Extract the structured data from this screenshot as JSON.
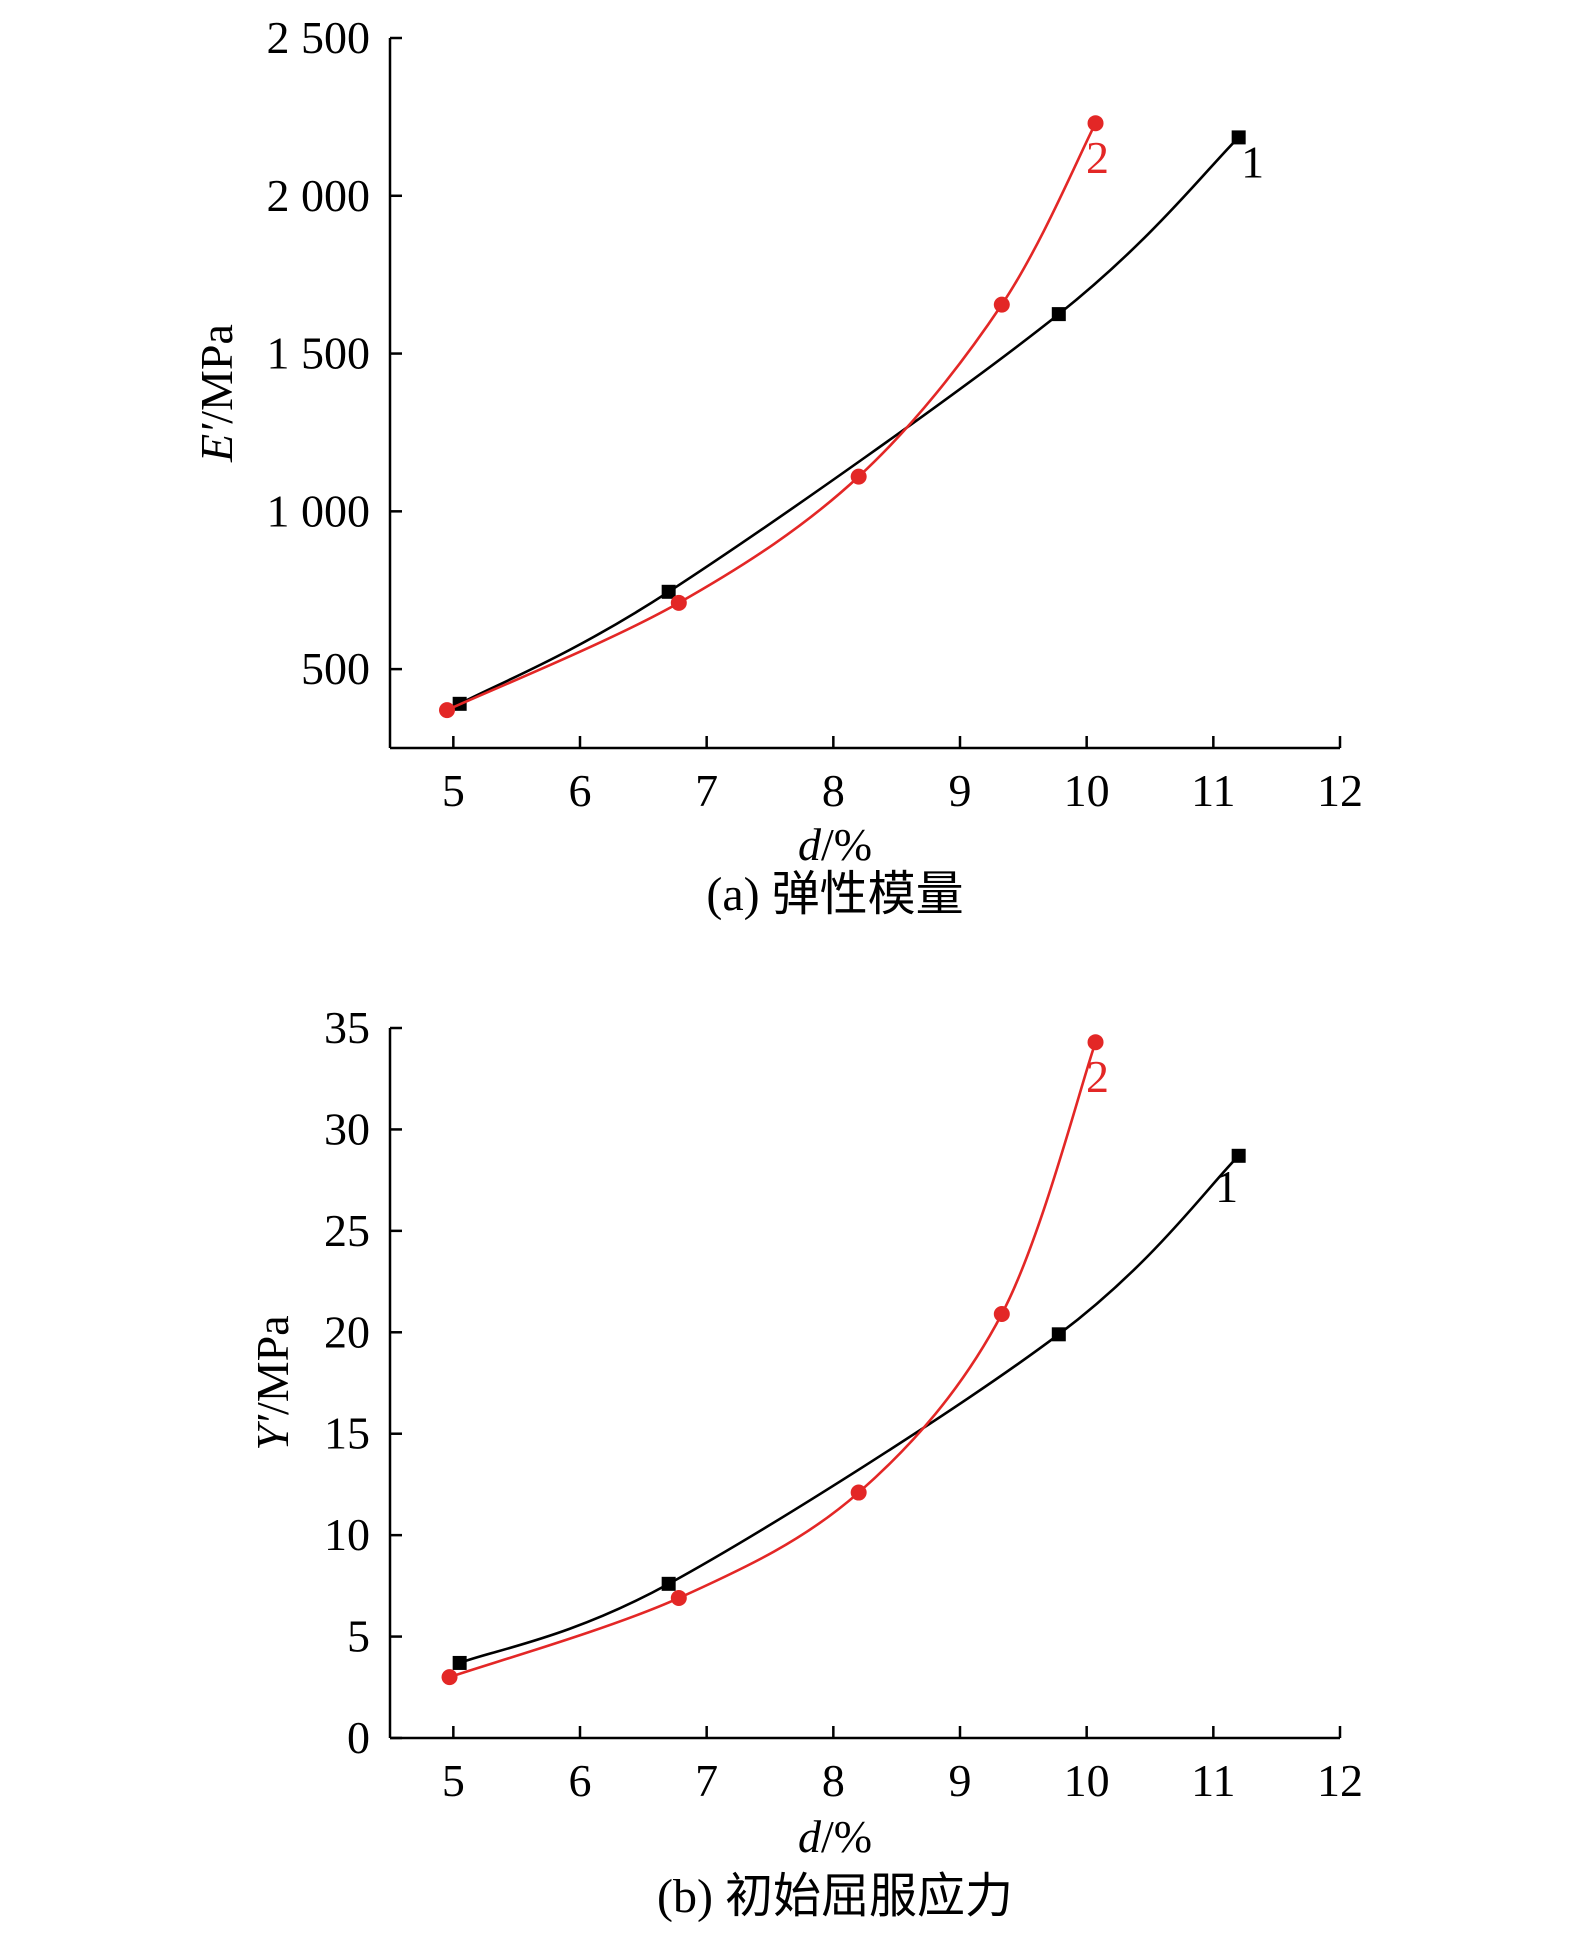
{
  "chart_data": [
    {
      "type": "line",
      "caption": "(a) 弹性模量",
      "xlabel_var": "d",
      "xlabel_unit": "/%",
      "ylabel_var": "E′",
      "ylabel_unit": "/MPa",
      "xlim": [
        4.5,
        12
      ],
      "ylim": [
        250,
        2500
      ],
      "xticks": [
        5,
        6,
        7,
        8,
        9,
        10,
        11,
        12
      ],
      "yticks": [
        500,
        1000,
        1500,
        2000,
        2500
      ],
      "ytick_labels": [
        "500",
        "1 000",
        "1 500",
        "2 000",
        "2 500"
      ],
      "series": [
        {
          "label": "1",
          "marker": "square",
          "color": "#000000",
          "x": [
            5.05,
            6.7,
            9.78,
            11.2
          ],
          "y": [
            390,
            745,
            1625,
            2185
          ]
        },
        {
          "label": "2",
          "marker": "circle",
          "color": "#e32726",
          "x": [
            4.95,
            6.78,
            8.2,
            9.33,
            10.07
          ],
          "y": [
            370,
            710,
            1110,
            1655,
            2230
          ]
        }
      ]
    },
    {
      "type": "line",
      "caption": "(b) 初始屈服应力",
      "xlabel_var": "d",
      "xlabel_unit": "/%",
      "ylabel_var": "Y′",
      "ylabel_unit": "/MPa",
      "xlim": [
        4.5,
        12
      ],
      "ylim": [
        0,
        35
      ],
      "xticks": [
        5,
        6,
        7,
        8,
        9,
        10,
        11,
        12
      ],
      "yticks": [
        0,
        5,
        10,
        15,
        20,
        25,
        30,
        35
      ],
      "ytick_labels": [
        "0",
        "5",
        "10",
        "15",
        "20",
        "25",
        "30",
        "35"
      ],
      "series": [
        {
          "label": "1",
          "marker": "square",
          "color": "#000000",
          "x": [
            5.05,
            6.7,
            9.78,
            11.2
          ],
          "y": [
            3.7,
            7.6,
            19.9,
            28.7
          ]
        },
        {
          "label": "2",
          "marker": "circle",
          "color": "#e32726",
          "x": [
            4.97,
            6.78,
            8.2,
            9.33,
            10.07
          ],
          "y": [
            3.0,
            6.9,
            12.1,
            20.9,
            34.3
          ]
        }
      ]
    }
  ]
}
